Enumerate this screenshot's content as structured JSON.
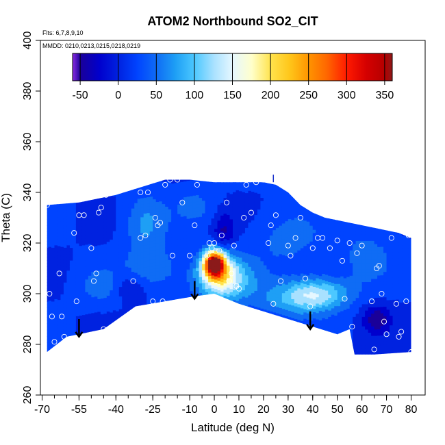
{
  "chart_data": {
    "type": "heatmap",
    "title": "ATOM2 Northbound SO2_CIT",
    "subtitle_flights": "Flts: 6,7,8,9,10",
    "subtitle_dates": "MMDD: 0210,0213,0215,0218,0219",
    "xlabel": "Latitude (deg N)",
    "ylabel": "Theta (C)",
    "xlim": [
      -70,
      80
    ],
    "ylim": [
      260,
      400
    ],
    "xticks": [
      -70,
      -55,
      -40,
      -25,
      -10,
      0,
      10,
      20,
      30,
      40,
      50,
      60,
      70,
      80
    ],
    "xticks_minor": [
      -70,
      -65,
      -60,
      -55,
      -50,
      -45,
      -40,
      -35,
      -30,
      -25,
      -20,
      -15,
      -10,
      -5,
      0,
      5,
      10,
      15,
      20,
      25,
      30,
      35,
      40,
      45,
      50,
      55,
      60,
      65,
      70,
      75,
      80
    ],
    "yticks": [
      260,
      280,
      300,
      320,
      340,
      360,
      380,
      400
    ],
    "colorbar": {
      "ticks": [
        -50,
        0,
        50,
        100,
        150,
        200,
        250,
        300,
        350
      ],
      "range": [
        -60,
        360
      ],
      "bins": [
        -60,
        -50,
        -25,
        0,
        25,
        50,
        75,
        100,
        125,
        150,
        175,
        200,
        225,
        250,
        275,
        300,
        325,
        350,
        360
      ],
      "colors": [
        "#8a2be2",
        "#1a0099",
        "#0000cd",
        "#0022e0",
        "#0044ff",
        "#0f6cf5",
        "#1e9ff5",
        "#4cc8ff",
        "#a8e1ff",
        "#e6f7ff",
        "#ffffcc",
        "#ffe34d",
        "#ffc61a",
        "#ff9400",
        "#ff6400",
        "#ff1a00",
        "#d60000",
        "#b40000",
        "#8b1a1a"
      ]
    },
    "grid": false,
    "background_level": 25,
    "region_top": [
      [
        -68,
        335
      ],
      [
        -55,
        336
      ],
      [
        -40,
        339
      ],
      [
        -30,
        342
      ],
      [
        -20,
        345
      ],
      [
        -10,
        345
      ],
      [
        0,
        344
      ],
      [
        10,
        344
      ],
      [
        20,
        344
      ],
      [
        25,
        343
      ],
      [
        30,
        340
      ],
      [
        35,
        335
      ],
      [
        40,
        332
      ],
      [
        45,
        330
      ],
      [
        55,
        328
      ],
      [
        65,
        326
      ],
      [
        75,
        324
      ],
      [
        80,
        322
      ]
    ],
    "region_bottom": [
      [
        -68,
        277
      ],
      [
        -60,
        283
      ],
      [
        -45,
        286
      ],
      [
        -32,
        295
      ],
      [
        -20,
        297
      ],
      [
        -8,
        299
      ],
      [
        0,
        300
      ],
      [
        10,
        296
      ],
      [
        20,
        293
      ],
      [
        30,
        290
      ],
      [
        40,
        287
      ],
      [
        50,
        284
      ],
      [
        55,
        286
      ],
      [
        57,
        276
      ],
      [
        65,
        276
      ],
      [
        80,
        277
      ]
    ],
    "features": [
      {
        "lat": 0,
        "theta": 312,
        "value": 340,
        "sigma_lat": 3.0,
        "sigma_theta": 3.5
      },
      {
        "lat": 2,
        "theta": 308,
        "value": 140,
        "sigma_lat": 6.0,
        "sigma_theta": 6.0
      },
      {
        "lat": 5,
        "theta": 305,
        "value": 95,
        "sigma_lat": 9.0,
        "sigma_theta": 6.0
      },
      {
        "lat": 42,
        "theta": 300,
        "value": 120,
        "sigma_lat": 9.0,
        "sigma_theta": 4.5
      },
      {
        "lat": 32,
        "theta": 298,
        "value": 80,
        "sigma_lat": 11.0,
        "sigma_theta": 5.0
      },
      {
        "lat": -28,
        "theta": 328,
        "value": 80,
        "sigma_lat": 6.0,
        "sigma_theta": 8.0
      },
      {
        "lat": -25,
        "theta": 310,
        "value": 70,
        "sigma_lat": 8.0,
        "sigma_theta": 6.0
      },
      {
        "lat": -45,
        "theta": 303,
        "value": 65,
        "sigma_lat": 7.0,
        "sigma_theta": 5.0
      },
      {
        "lat": 30,
        "theta": 322,
        "value": 60,
        "sigma_lat": 10.0,
        "sigma_theta": 8.0
      },
      {
        "lat": 62,
        "theta": 315,
        "value": 60,
        "sigma_lat": 8.0,
        "sigma_theta": 8.0
      },
      {
        "lat": -8,
        "theta": 335,
        "value": 55,
        "sigma_lat": 6.0,
        "sigma_theta": 5.0
      },
      {
        "lat": 4,
        "theta": 325,
        "value": -30,
        "sigma_lat": 3.0,
        "sigma_theta": 5.0
      },
      {
        "lat": 66,
        "theta": 290,
        "value": -40,
        "sigma_lat": 4.0,
        "sigma_theta": 4.0
      },
      {
        "lat": -35,
        "theta": 303,
        "value": -20,
        "sigma_lat": 5.0,
        "sigma_theta": 4.0
      }
    ],
    "observations": [
      [
        -68,
        335
      ],
      [
        -67,
        300
      ],
      [
        -66,
        291
      ],
      [
        -65,
        281
      ],
      [
        -63,
        308
      ],
      [
        -62,
        291
      ],
      [
        -61,
        283
      ],
      [
        -57,
        324
      ],
      [
        -56,
        297
      ],
      [
        -55,
        331
      ],
      [
        -53,
        331
      ],
      [
        -50,
        318
      ],
      [
        -49,
        305
      ],
      [
        -48,
        308
      ],
      [
        -47,
        332
      ],
      [
        -46,
        334
      ],
      [
        -45,
        286
      ],
      [
        -44,
        339
      ],
      [
        -35,
        344
      ],
      [
        -33,
        305
      ],
      [
        -30,
        340
      ],
      [
        -30,
        322
      ],
      [
        -28,
        323
      ],
      [
        -27,
        340
      ],
      [
        -25,
        297
      ],
      [
        -24,
        330
      ],
      [
        -23,
        327
      ],
      [
        -22,
        328
      ],
      [
        -21,
        297
      ],
      [
        -20,
        343
      ],
      [
        -18,
        345
      ],
      [
        -17,
        315
      ],
      [
        -15,
        345
      ],
      [
        -13,
        336
      ],
      [
        -10,
        315
      ],
      [
        -8,
        327
      ],
      [
        -7,
        343
      ],
      [
        -3,
        315
      ],
      [
        -2,
        320
      ],
      [
        -1,
        318
      ],
      [
        0,
        320
      ],
      [
        2,
        317
      ],
      [
        3,
        323
      ],
      [
        5,
        336
      ],
      [
        6,
        305
      ],
      [
        7,
        308
      ],
      [
        8,
        319
      ],
      [
        9,
        303
      ],
      [
        10,
        302
      ],
      [
        12,
        330
      ],
      [
        13,
        343
      ],
      [
        15,
        332
      ],
      [
        17,
        344
      ],
      [
        20,
        345
      ],
      [
        22,
        320
      ],
      [
        23,
        327
      ],
      [
        24,
        296
      ],
      [
        25,
        331
      ],
      [
        27,
        305
      ],
      [
        30,
        319
      ],
      [
        31,
        315
      ],
      [
        32,
        340
      ],
      [
        33,
        322
      ],
      [
        35,
        330
      ],
      [
        37,
        306
      ],
      [
        39,
        295
      ],
      [
        40,
        318
      ],
      [
        42,
        322
      ],
      [
        44,
        322
      ],
      [
        46,
        336
      ],
      [
        47,
        318
      ],
      [
        50,
        321
      ],
      [
        52,
        313
      ],
      [
        53,
        298
      ],
      [
        55,
        320
      ],
      [
        56,
        287
      ],
      [
        58,
        316
      ],
      [
        60,
        319
      ],
      [
        63,
        330
      ],
      [
        64,
        297
      ],
      [
        65,
        278
      ],
      [
        66,
        310
      ],
      [
        67,
        311
      ],
      [
        68,
        300
      ],
      [
        69,
        289
      ],
      [
        70,
        284
      ],
      [
        72,
        322
      ],
      [
        74,
        296
      ],
      [
        75,
        283
      ],
      [
        76,
        285
      ],
      [
        78,
        297
      ],
      [
        79,
        323
      ],
      [
        80,
        277
      ]
    ],
    "arrows": [
      {
        "lat": -55,
        "theta_from": 290,
        "theta_to": 283
      },
      {
        "lat": -8,
        "theta_from": 305,
        "theta_to": 298
      },
      {
        "lat": 39,
        "theta_from": 293,
        "theta_to": 286
      }
    ],
    "top_marker": {
      "lat": 24,
      "theta": 347
    }
  }
}
